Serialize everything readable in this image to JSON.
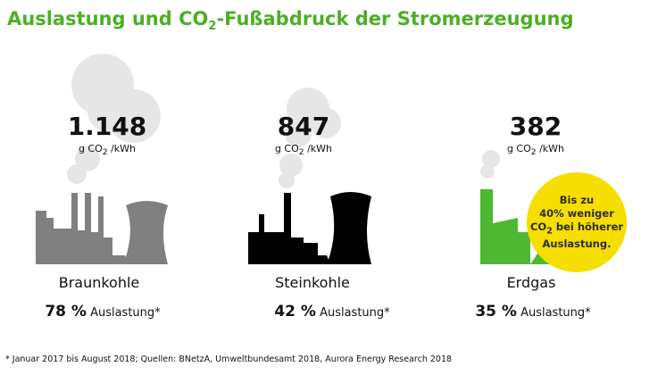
{
  "title": {
    "pre": "Auslastung und CO",
    "sub": "2",
    "post": "-Fußabdruck der Stromerzeugung"
  },
  "chart_data": {
    "type": "table",
    "categories": [
      "Braunkohle",
      "Steinkohle",
      "Erdgas"
    ],
    "emissions": [
      "1.148",
      "847",
      "382"
    ],
    "emission_unit": {
      "pre": "g CO",
      "sub": "2",
      "post": " /kWh"
    },
    "utilization_values": [
      78,
      42,
      35
    ],
    "utilization_pct": [
      "78 %",
      "42 %",
      "35 %"
    ],
    "utilization_label": "Auslastung*",
    "colors": {
      "Braunkohle": "#808080",
      "Steinkohle": "#000000",
      "Erdgas": "#4fb833"
    }
  },
  "badge": {
    "line1": "Bis zu",
    "line2": "40% weniger",
    "line3_pre": "CO",
    "line3_sub": "2",
    "line3_post": " bei höherer",
    "line4": "Auslastung."
  },
  "footnote": "* Januar 2017 bis August 2018; Quellen: BNetzA, Umweltbundesamt 2018, Aurora Energy Research 2018",
  "colors": {
    "title": "#4caf25",
    "smoke": "#e6e6e6",
    "badge": "#f6de00"
  }
}
